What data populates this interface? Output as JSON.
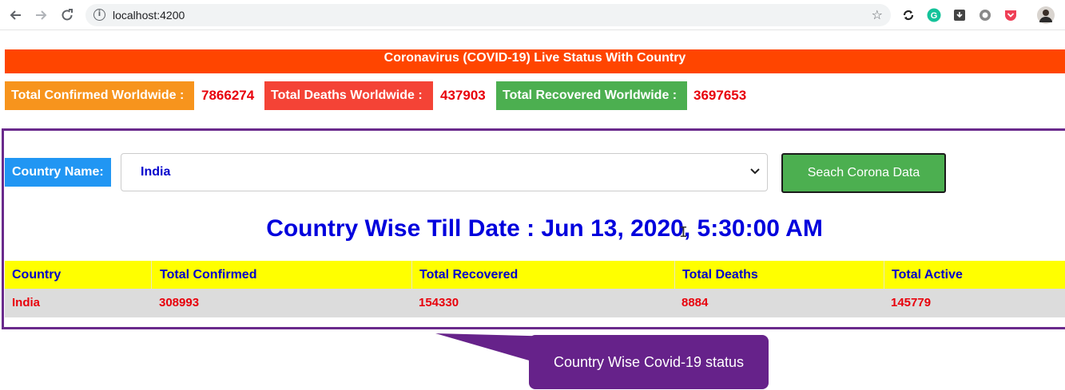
{
  "browser": {
    "url": "localhost:4200",
    "icons": [
      "back-icon",
      "forward-icon",
      "reload-icon",
      "info-icon",
      "bookmark-star-icon",
      "sync-extension-icon",
      "grammarly-icon",
      "download-extension-icon",
      "record-extension-icon",
      "pocket-icon",
      "avatar"
    ]
  },
  "banner": {
    "title": "Coronavirus (COVID-19) Live Status With Country"
  },
  "worldwide": {
    "confirmed_label": "Total Confirmed Worldwide :",
    "confirmed_value": "7866274",
    "deaths_label": "Total Deaths Worldwide :",
    "deaths_value": "437903",
    "recovered_label": "Total Recovered Worldwide :",
    "recovered_value": "3697653"
  },
  "search": {
    "label": "Country Name:",
    "selected_country": "India",
    "button_label": "Seach Corona Data"
  },
  "till_date": "Country Wise Till Date : Jun 13, 2020, 5:30:00 AM",
  "table": {
    "headers": [
      "Country",
      "Total Confirmed",
      "Total Recovered",
      "Total Deaths",
      "Total Active"
    ],
    "rows": [
      [
        "India",
        "308993",
        "154330",
        "8884",
        "145779"
      ]
    ]
  },
  "callout": {
    "text": "Country Wise Covid-19 status"
  },
  "colors": {
    "banner": "#ff4500",
    "confirmed": "#f7941d",
    "deaths": "#f44336",
    "recovered": "#4caf50",
    "country_label": "#2196f3",
    "header_row": "#ffff00",
    "value_red": "#e8000b",
    "title_blue": "#0000dd",
    "panel_border": "#6a2a8c",
    "callout": "#66228a"
  }
}
